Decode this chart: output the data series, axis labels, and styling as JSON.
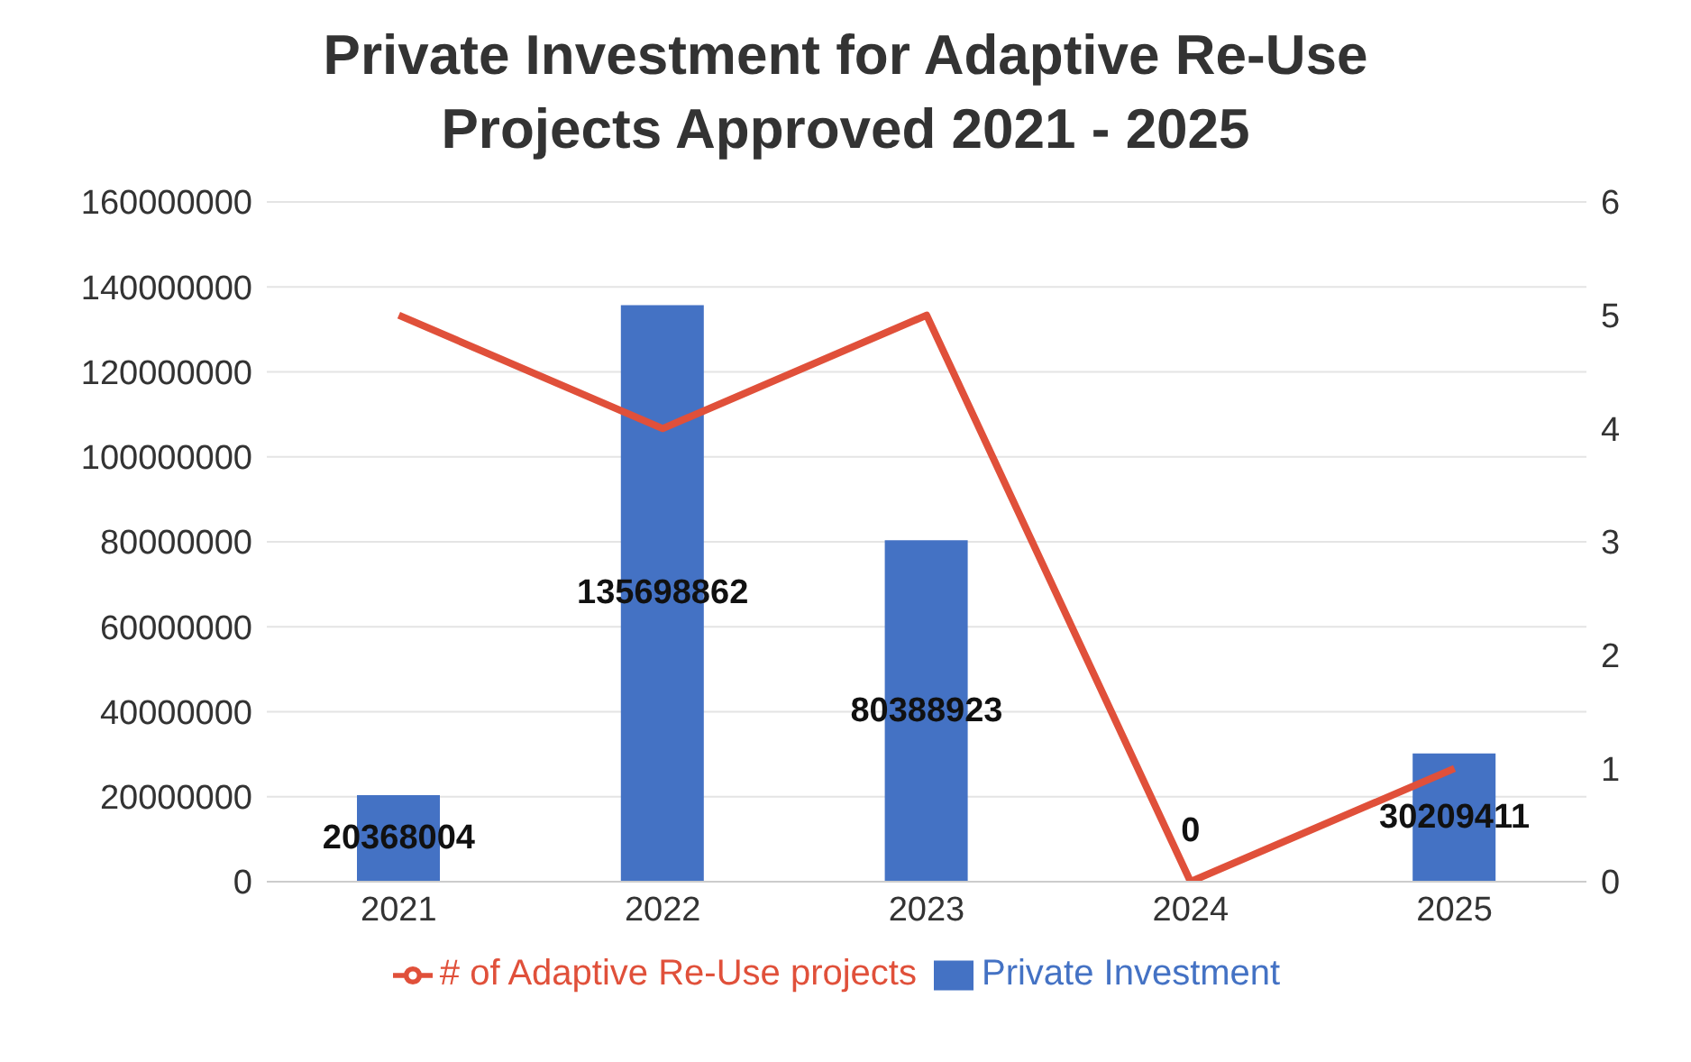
{
  "chart_data": {
    "type": "bar",
    "title": "Private Investment for Adaptive Re-Use Projects Approved 2021 - 2025",
    "categories": [
      "2021",
      "2022",
      "2023",
      "2024",
      "2025"
    ],
    "series": [
      {
        "name": "Private Investment",
        "color": "#4472c4",
        "values": [
          20368004,
          135698862,
          80388923,
          0,
          30209411
        ],
        "value_labels": [
          "20368004",
          "135698862",
          "80388923",
          "0",
          "30209411"
        ]
      },
      {
        "name": "# of Adaptive Re-Use projects",
        "type": "line",
        "axis": "y2",
        "color": "#e0503a",
        "values": [
          5,
          4,
          5,
          0,
          1
        ]
      }
    ],
    "ylim": [
      0,
      160000000
    ],
    "yticks": [
      0,
      20000000,
      40000000,
      60000000,
      80000000,
      100000000,
      120000000,
      140000000,
      160000000
    ],
    "y2lim": [
      0,
      6
    ],
    "y2ticks": [
      0,
      1,
      2,
      3,
      4,
      5,
      6
    ],
    "grid": "y",
    "legend": "bottom",
    "marker": "none"
  }
}
